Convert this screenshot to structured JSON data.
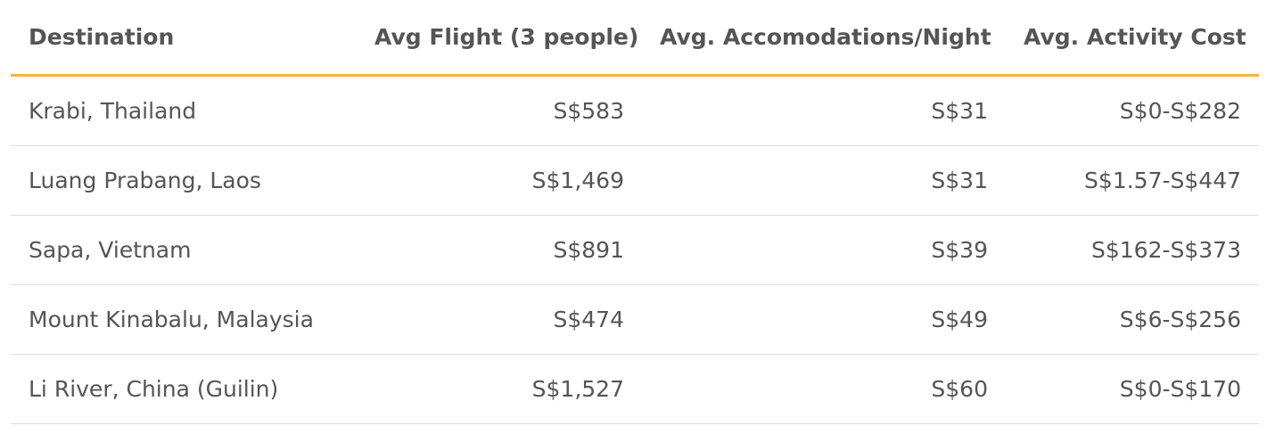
{
  "table": {
    "header": [
      "Destination",
      "Avg Flight (3 people)",
      "Avg. Accomodations/Night",
      "Avg. Activity Cost"
    ],
    "rows": [
      [
        "Krabi, Thailand",
        "S$583",
        "S$31",
        "S$0-S$282"
      ],
      [
        "Luang Prabang, Laos",
        "S$1,469",
        "S$31",
        "S$1.57-S$447"
      ],
      [
        "Sapa, Vietnam",
        "S$891",
        "S$39",
        "S$162-S$373"
      ],
      [
        "Mount Kinabalu, Malaysia",
        "S$474",
        "S$49",
        "S$6-S$256"
      ],
      [
        "Li River, China (Guilin)",
        "S$1,527",
        "S$60",
        "S$0-S$170"
      ]
    ]
  }
}
